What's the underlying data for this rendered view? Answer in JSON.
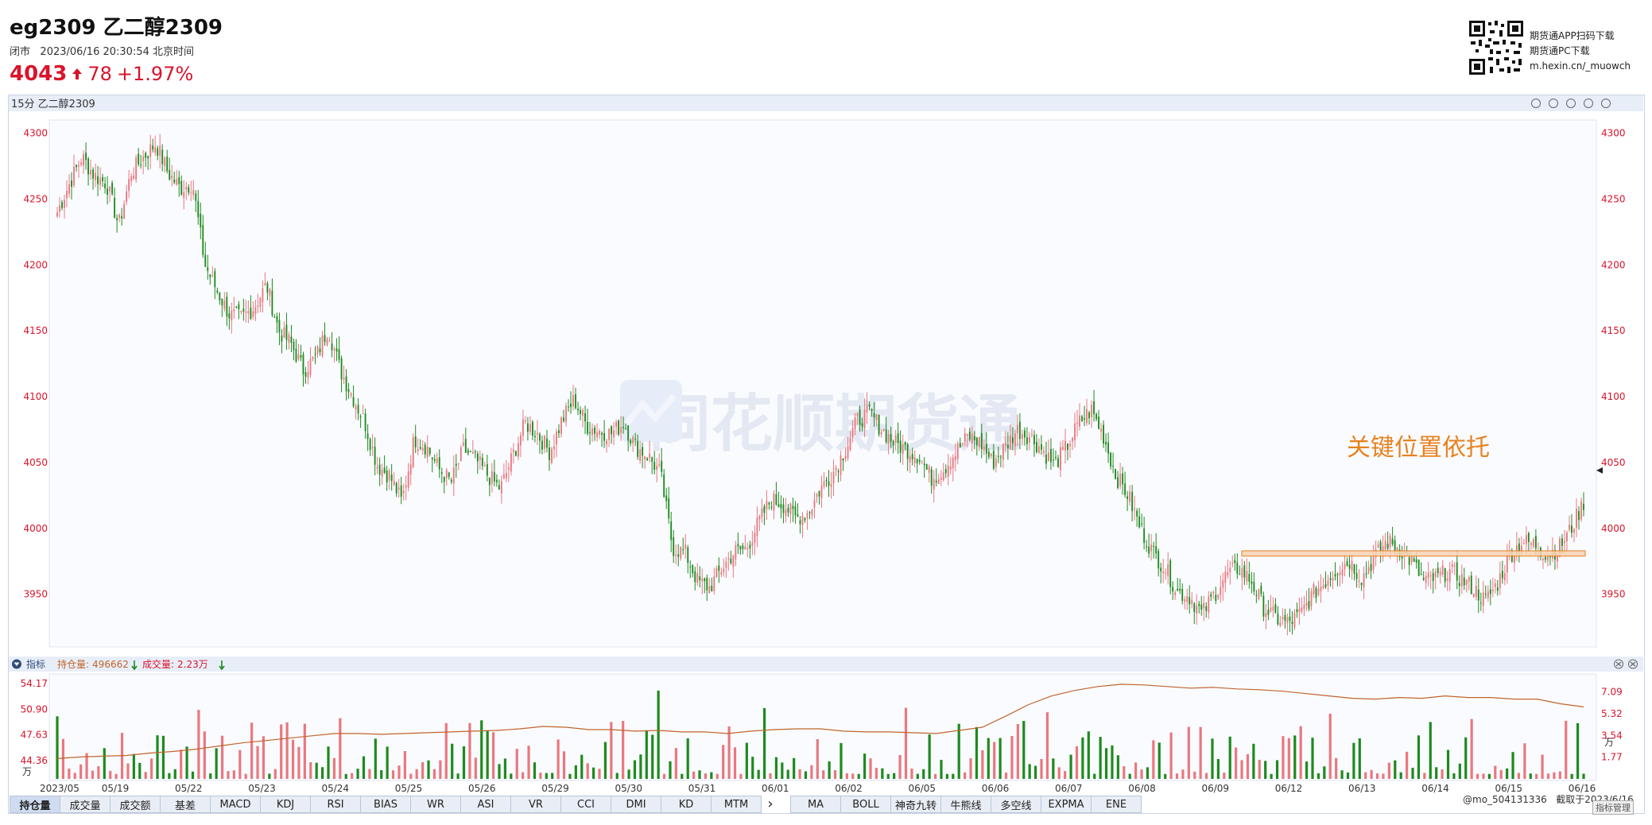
{
  "header": {
    "title": "eg2309 乙二醇2309",
    "status": "闭市",
    "datetime": "2023/06/16 20:30:54 北京时间",
    "price": "4043",
    "change": "78",
    "change_pct": "+1.97%",
    "download": [
      "期货通APP扫码下载",
      "期货通PC下载",
      "m.hexin.cn/_muowch"
    ]
  },
  "main_panel": {
    "title": "15分 乙二醇2309",
    "watermark": "同花顺期货通",
    "annotation": "关键位置依托",
    "tool_icons": [
      "undo-icon",
      "zoom-in-icon",
      "zoom-out-icon",
      "screenshot-icon",
      "close-icon"
    ]
  },
  "indicator_panel": {
    "title": "指标",
    "oi_label": "持仓量:",
    "oi_value": "496662",
    "vol_label": "成交量:",
    "vol_value": "2.23万",
    "left_unit": "万",
    "right_unit": "万"
  },
  "tabs": [
    "持仓量",
    "成交量",
    "成交额",
    "基差",
    "MACD",
    "KDJ",
    "RSI",
    "BIAS",
    "WR",
    "ASI",
    "VR",
    "CCI",
    "DMI",
    "KD",
    "MTM"
  ],
  "more_arrow": "›",
  "tabs2": [
    "MA",
    "BOLL",
    "神奇九转",
    "牛熊线",
    "多空线",
    "EXPMA",
    "ENE"
  ],
  "footer": {
    "user": "@mo_504131336",
    "capture": "截取于2023/6/16",
    "corner_button": "指标管理"
  },
  "colors": {
    "up": "#e9787f",
    "down": "#1e8a1e",
    "oi_line": "#c0652a",
    "annotation": "#e8821e",
    "accent": "#d9142b"
  },
  "chart_data": {
    "type": "candlestick",
    "interval": "15分",
    "ylim": [
      3910,
      4310
    ],
    "y_ticks": [
      4300,
      4250,
      4200,
      4150,
      4100,
      4050,
      4000,
      3950
    ],
    "x_labels": [
      "05/19",
      "05/22",
      "05/23",
      "05/24",
      "05/25",
      "05/26",
      "05/29",
      "05/30",
      "05/31",
      "06/01",
      "06/02",
      "06/05",
      "06/06",
      "06/07",
      "06/08",
      "06/09",
      "06/12",
      "06/13",
      "06/14",
      "06/15",
      "06/16"
    ],
    "first_label": "2023/05",
    "close_path": [
      4240,
      4262,
      4282,
      4268,
      4262,
      4230,
      4270,
      4282,
      4292,
      4270,
      4258,
      4262,
      4200,
      4180,
      4162,
      4160,
      4168,
      4185,
      4150,
      4140,
      4120,
      4130,
      4152,
      4120,
      4100,
      4080,
      4048,
      4040,
      4020,
      4068,
      4062,
      4045,
      4035,
      4060,
      4052,
      4040,
      4030,
      4055,
      4080,
      4072,
      4058,
      4082,
      4098,
      4078,
      4074,
      4072,
      4080,
      4062,
      4055,
      4042,
      3985,
      3982,
      3960,
      3955,
      3970,
      3982,
      3985,
      4005,
      4022,
      4018,
      4008,
      4012,
      4030,
      4042,
      4060,
      4082,
      4088,
      4075,
      4065,
      4060,
      4055,
      4038,
      4045,
      4058,
      4070,
      4065,
      4050,
      4062,
      4075,
      4070,
      4060,
      4048,
      4062,
      4080,
      4090,
      4070,
      4040,
      4025,
      4000,
      3982,
      3970,
      3952,
      3948,
      3935,
      3950,
      3965,
      3970,
      3960,
      3940,
      3932,
      3928,
      3935,
      3950,
      3960,
      3970,
      3975,
      3962,
      3978,
      3990,
      3985,
      3975,
      3960,
      3962,
      3968,
      3962,
      3955,
      3945,
      3958,
      3980,
      3990,
      3988,
      3980,
      3985,
      4000,
      4020
    ],
    "key_zone": [
      3979,
      3983
    ],
    "volume_axis": [
      7.09,
      5.32,
      3.54,
      1.77
    ],
    "oi_axis": [
      54.17,
      50.9,
      47.63,
      44.36
    ],
    "oi_path": [
      44.6,
      44.8,
      44.9,
      45.0,
      45.3,
      45.5,
      45.8,
      46.2,
      46.6,
      46.9,
      47.2,
      47.5,
      47.8,
      47.8,
      47.7,
      47.8,
      47.9,
      48.0,
      48.1,
      48.2,
      48.4,
      48.7,
      48.6,
      48.3,
      48.3,
      48.1,
      48.2,
      48.0,
      48.0,
      47.8,
      48.1,
      48.3,
      48.4,
      48.4,
      48.1,
      48.0,
      48.0,
      47.9,
      47.8,
      48.2,
      48.6,
      50.0,
      51.5,
      52.6,
      53.3,
      53.8,
      54.1,
      54.0,
      53.8,
      53.6,
      53.7,
      53.5,
      53.4,
      53.2,
      52.9,
      52.6,
      52.3,
      52.2,
      52.4,
      52.3,
      52.6,
      52.4,
      52.4,
      52.2,
      52.2,
      51.6,
      51.2
    ]
  }
}
